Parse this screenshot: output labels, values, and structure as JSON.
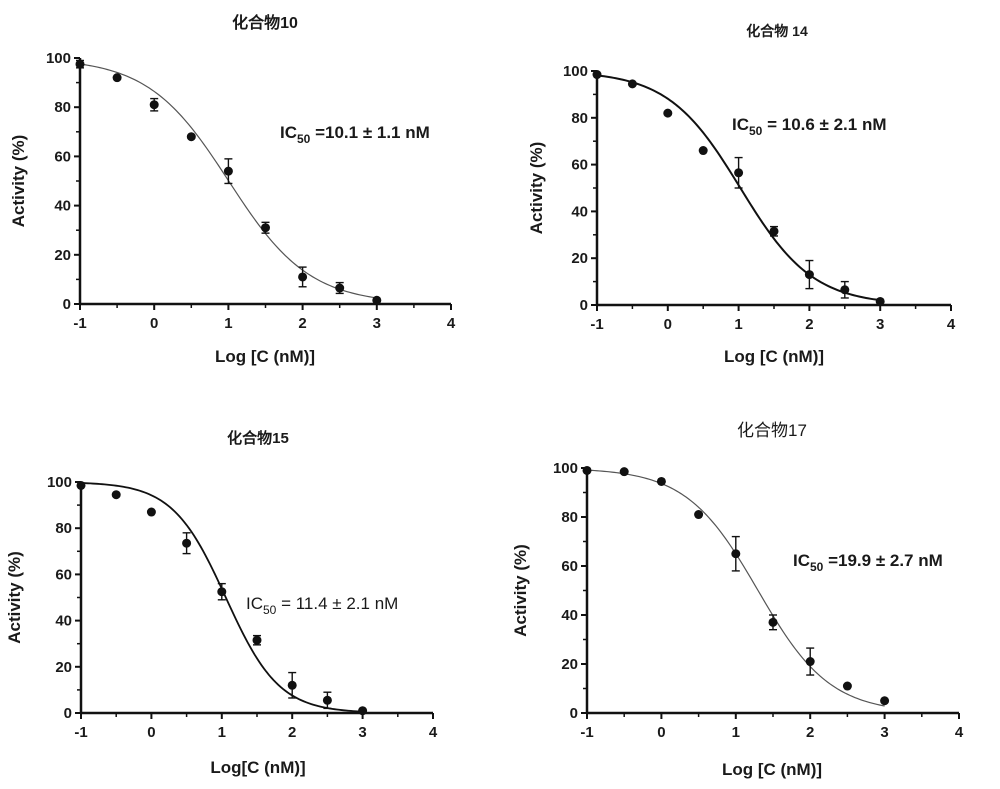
{
  "chart_data": [
    {
      "type": "scatter",
      "title": "化合物10",
      "xlabel": "Log [C (nM)]",
      "ylabel": "Activity (%)",
      "xlim": [
        -1,
        4
      ],
      "ylim": [
        0,
        100
      ],
      "xticks": [
        "-1",
        "0",
        "1",
        "2",
        "3",
        "4"
      ],
      "yticks": [
        "0",
        "20",
        "40",
        "60",
        "80",
        "100"
      ],
      "grid": false,
      "annotation": {
        "prefix": "IC",
        "sub": "50",
        "suffix": " =10.1 ± 1.1 nM"
      },
      "fit": {
        "bottom": 0,
        "top": 100,
        "logIC50": 1.004,
        "hill": 0.8,
        "curve_color": "#555555"
      },
      "series": [
        {
          "name": "data",
          "x": [
            -1,
            -0.5,
            0,
            0.5,
            1,
            1.5,
            2,
            2.5,
            3
          ],
          "y": [
            97.5,
            92,
            81,
            68,
            54,
            31,
            11,
            6.5,
            1.5
          ],
          "err": [
            1.5,
            0.8,
            2.5,
            0.8,
            5,
            2.2,
            4,
            2.2,
            0.5
          ]
        }
      ]
    },
    {
      "type": "scatter",
      "title": "化合物 14",
      "xlabel": "Log [C (nM)]",
      "ylabel": "Activity (%)",
      "xlim": [
        -1,
        4
      ],
      "ylim": [
        0,
        100
      ],
      "xticks": [
        "-1",
        "0",
        "1",
        "2",
        "3",
        "4"
      ],
      "yticks": [
        "0",
        "20",
        "40",
        "60",
        "80",
        "100"
      ],
      "grid": false,
      "annotation": {
        "prefix": "IC",
        "sub": "50",
        "suffix": " = 10.6 ± 2.1 nM"
      },
      "fit": {
        "bottom": 0,
        "top": 100,
        "logIC50": 1.025,
        "hill": 0.85,
        "curve_color": "#111111"
      },
      "series": [
        {
          "name": "data",
          "x": [
            -1,
            -0.5,
            0,
            0.5,
            1,
            1.5,
            2,
            2.5,
            3
          ],
          "y": [
            98.5,
            94.5,
            82,
            66,
            56.5,
            31.5,
            13,
            6.5,
            1.5
          ],
          "err": [
            0.8,
            0.8,
            0.8,
            0.8,
            6.5,
            2,
            6,
            3.5,
            0.5
          ]
        }
      ]
    },
    {
      "type": "scatter",
      "title": "化合物15",
      "xlabel": "Log[C (nM)]",
      "ylabel": "Activity (%)",
      "xlim": [
        -1,
        4
      ],
      "ylim": [
        0,
        100
      ],
      "xticks": [
        "-1",
        "0",
        "1",
        "2",
        "3",
        "4"
      ],
      "yticks": [
        "0",
        "20",
        "40",
        "60",
        "80",
        "100"
      ],
      "grid": false,
      "annotation": {
        "prefix": "IC",
        "sub": "50",
        "suffix": " = 11.4 ± 2.1 nM"
      },
      "fit": {
        "bottom": 0,
        "top": 100,
        "logIC50": 1.057,
        "hill": 1.15,
        "curve_color": "#111111"
      },
      "series": [
        {
          "name": "data",
          "x": [
            -1,
            -0.5,
            0,
            0.5,
            1,
            1.5,
            2,
            2.5,
            3
          ],
          "y": [
            98.5,
            94.5,
            87,
            73.5,
            52.5,
            31.5,
            12,
            5.5,
            1
          ],
          "err": [
            0.8,
            0.8,
            0.8,
            4.5,
            3.5,
            2,
            5.5,
            3.5,
            0.5
          ]
        }
      ]
    },
    {
      "type": "scatter",
      "title": "化合物17",
      "xlabel": "Log [C (nM)]",
      "ylabel": "Activity (%)",
      "xlim": [
        -1,
        4
      ],
      "ylim": [
        0,
        100
      ],
      "xticks": [
        "-1",
        "0",
        "1",
        "2",
        "3",
        "4"
      ],
      "yticks": [
        "0",
        "20",
        "40",
        "60",
        "80",
        "100"
      ],
      "grid": false,
      "annotation": {
        "prefix": "IC",
        "sub": "50",
        "suffix": " =19.9 ± 2.7 nM"
      },
      "fit": {
        "bottom": 0,
        "top": 100,
        "logIC50": 1.299,
        "hill": 0.9,
        "curve_color": "#555555"
      },
      "series": [
        {
          "name": "data",
          "x": [
            -1,
            -0.5,
            0,
            0.5,
            1,
            1.5,
            2,
            2.5,
            3
          ],
          "y": [
            99,
            98.5,
            94.5,
            81,
            65,
            37,
            21,
            11,
            5
          ],
          "err": [
            0.5,
            0.5,
            0.8,
            0.8,
            7,
            3,
            5.5,
            0.5,
            0.5
          ]
        }
      ]
    }
  ]
}
